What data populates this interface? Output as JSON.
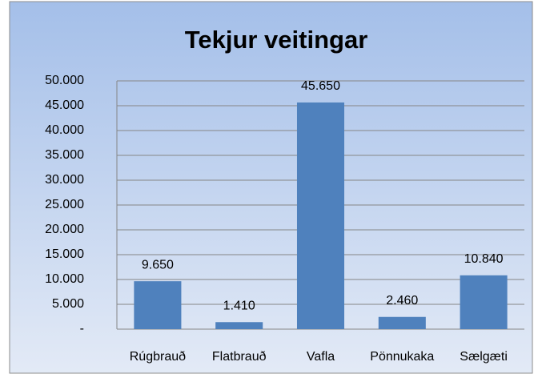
{
  "chart_data": {
    "type": "bar",
    "title": "Tekjur veitingar",
    "categories": [
      "Rúgbrauð",
      "Flatbrauð",
      "Vafla",
      "Pönnukaka",
      "Sælgæti"
    ],
    "values": [
      9650,
      1410,
      45650,
      2460,
      10840
    ],
    "value_labels": [
      "9.650",
      "1.410",
      "45.650",
      "2.460",
      "10.840"
    ],
    "color": "#4f81bd",
    "ylim": [
      0,
      50000
    ],
    "yticks": [
      {
        "value": 0,
        "label": "-"
      },
      {
        "value": 5000,
        "label": "5.000"
      },
      {
        "value": 10000,
        "label": "10.000"
      },
      {
        "value": 15000,
        "label": "15.000"
      },
      {
        "value": 20000,
        "label": "20.000"
      },
      {
        "value": 25000,
        "label": "25.000"
      },
      {
        "value": 30000,
        "label": "30.000"
      },
      {
        "value": 35000,
        "label": "35.000"
      },
      {
        "value": 40000,
        "label": "40.000"
      },
      {
        "value": 45000,
        "label": "45.000"
      },
      {
        "value": 50000,
        "label": "50.000"
      }
    ],
    "grid": true
  }
}
